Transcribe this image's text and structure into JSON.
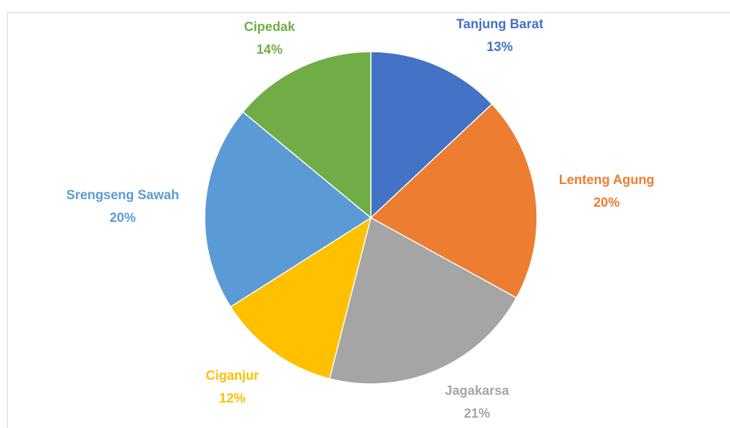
{
  "chart_data": {
    "type": "pie",
    "categories": [
      "Tanjung Barat",
      "Lenteng Agung",
      "Jagakarsa",
      "Ciganjur",
      "Srengseng Sawah",
      "Cipedak"
    ],
    "values": [
      13,
      20,
      21,
      12,
      20,
      14
    ],
    "value_labels": [
      "13%",
      "20%",
      "21%",
      "12%",
      "20%",
      "14%"
    ],
    "colors": [
      "#4472c4",
      "#ed7d31",
      "#a5a5a5",
      "#ffc000",
      "#5b9bd5",
      "#70ad47"
    ]
  }
}
